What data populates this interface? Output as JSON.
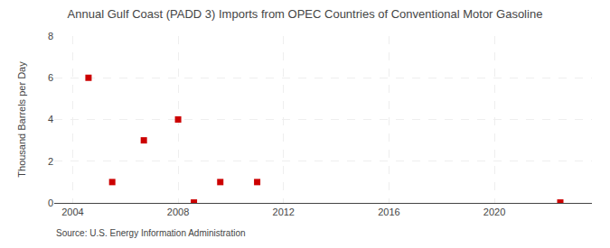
{
  "chart_data": {
    "type": "scatter",
    "title": "Annual Gulf Coast (PADD 3) Imports from OPEC Countries of Conventional Motor Gasoline",
    "y_label": "Thousand Barrels per Day",
    "annotations": [
      "Source: U.S. Energy Information Administration"
    ],
    "x": [
      2004.6,
      2005.5,
      2006.7,
      2008.0,
      2008.6,
      2009.6,
      2011.0,
      2022.5
    ],
    "values": [
      6.0,
      1.0,
      3.0,
      4.0,
      0.02,
      1.0,
      1.0,
      0.02
    ],
    "color": "#cc0000",
    "marker": "square",
    "xlim": [
      2003.3,
      2023.7
    ],
    "xticks": [
      2004,
      2008,
      2012,
      2016,
      2020
    ],
    "ylim": [
      0,
      8
    ],
    "yticks": [
      0,
      2,
      4,
      6,
      8
    ],
    "grid": true
  }
}
